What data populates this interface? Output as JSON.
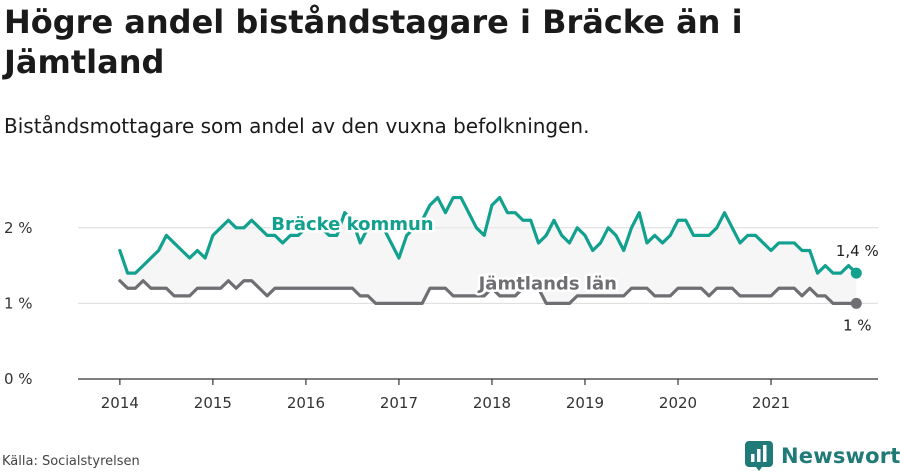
{
  "title": "Högre andel biståndstagare i Bräcke än i Jämtland",
  "subtitle": "Biståndsmottagare som andel av den vuxna befolkningen.",
  "source": "Källa: Socialstyrelsen",
  "brand": {
    "name": "Newsworthy",
    "icon": "bar-chart-badge-icon"
  },
  "chart_data": {
    "type": "line",
    "title": "Högre andel biståndstagare i Bräcke än i Jämtland",
    "xlabel": "",
    "ylabel": "",
    "ylim": [
      0,
      2.5
    ],
    "y_ticks": [
      {
        "value": 0,
        "label": "0 %"
      },
      {
        "value": 1,
        "label": "1 %"
      },
      {
        "value": 2,
        "label": "2 %"
      }
    ],
    "x_ticks": [
      {
        "value": 2014,
        "label": "2014"
      },
      {
        "value": 2015,
        "label": "2015"
      },
      {
        "value": 2016,
        "label": "2016"
      },
      {
        "value": 2017,
        "label": "2017"
      },
      {
        "value": 2018,
        "label": "2018"
      },
      {
        "value": 2019,
        "label": "2019"
      },
      {
        "value": 2020,
        "label": "2020"
      },
      {
        "value": 2021,
        "label": "2021"
      }
    ],
    "xlim": [
      2013.55,
      2022.15
    ],
    "grid": "horizontal",
    "start": {
      "year": 2014,
      "month": 1
    },
    "series": [
      {
        "name": "Bräcke kommun",
        "color": "#12a08f",
        "end_label": "1,4 %",
        "values": [
          1.7,
          1.4,
          1.4,
          1.5,
          1.6,
          1.7,
          1.9,
          1.8,
          1.7,
          1.6,
          1.7,
          1.6,
          1.9,
          2.0,
          2.1,
          2.0,
          2.0,
          2.1,
          2.0,
          1.9,
          1.9,
          1.8,
          1.9,
          1.9,
          2.0,
          2.1,
          2.0,
          1.9,
          1.9,
          2.2,
          2.1,
          1.8,
          2.0,
          2.0,
          2.0,
          1.8,
          1.6,
          1.9,
          2.0,
          2.1,
          2.3,
          2.4,
          2.2,
          2.4,
          2.4,
          2.2,
          2.0,
          1.9,
          2.3,
          2.4,
          2.2,
          2.2,
          2.1,
          2.1,
          1.8,
          1.9,
          2.1,
          1.9,
          1.8,
          2.0,
          1.9,
          1.7,
          1.8,
          2.0,
          1.9,
          1.7,
          2.0,
          2.2,
          1.8,
          1.9,
          1.8,
          1.9,
          2.1,
          2.1,
          1.9,
          1.9,
          1.9,
          2.0,
          2.2,
          2.0,
          1.8,
          1.9,
          1.9,
          1.8,
          1.7,
          1.8,
          1.8,
          1.8,
          1.7,
          1.7,
          1.4,
          1.5,
          1.4,
          1.4,
          1.5,
          1.4
        ]
      },
      {
        "name": "Jämtlands län",
        "color": "#6e6e73",
        "end_label": "1 %",
        "values": [
          1.3,
          1.2,
          1.2,
          1.3,
          1.2,
          1.2,
          1.2,
          1.1,
          1.1,
          1.1,
          1.2,
          1.2,
          1.2,
          1.2,
          1.3,
          1.2,
          1.3,
          1.3,
          1.2,
          1.1,
          1.2,
          1.2,
          1.2,
          1.2,
          1.2,
          1.2,
          1.2,
          1.2,
          1.2,
          1.2,
          1.2,
          1.1,
          1.1,
          1.0,
          1.0,
          1.0,
          1.0,
          1.0,
          1.0,
          1.0,
          1.2,
          1.2,
          1.2,
          1.1,
          1.1,
          1.1,
          1.1,
          1.1,
          1.2,
          1.1,
          1.1,
          1.1,
          1.2,
          1.2,
          1.2,
          1.0,
          1.0,
          1.0,
          1.0,
          1.1,
          1.1,
          1.1,
          1.1,
          1.1,
          1.1,
          1.1,
          1.2,
          1.2,
          1.2,
          1.1,
          1.1,
          1.1,
          1.2,
          1.2,
          1.2,
          1.2,
          1.1,
          1.2,
          1.2,
          1.2,
          1.1,
          1.1,
          1.1,
          1.1,
          1.1,
          1.2,
          1.2,
          1.2,
          1.1,
          1.2,
          1.1,
          1.1,
          1.0,
          1.0,
          1.0,
          1.0
        ]
      }
    ]
  }
}
